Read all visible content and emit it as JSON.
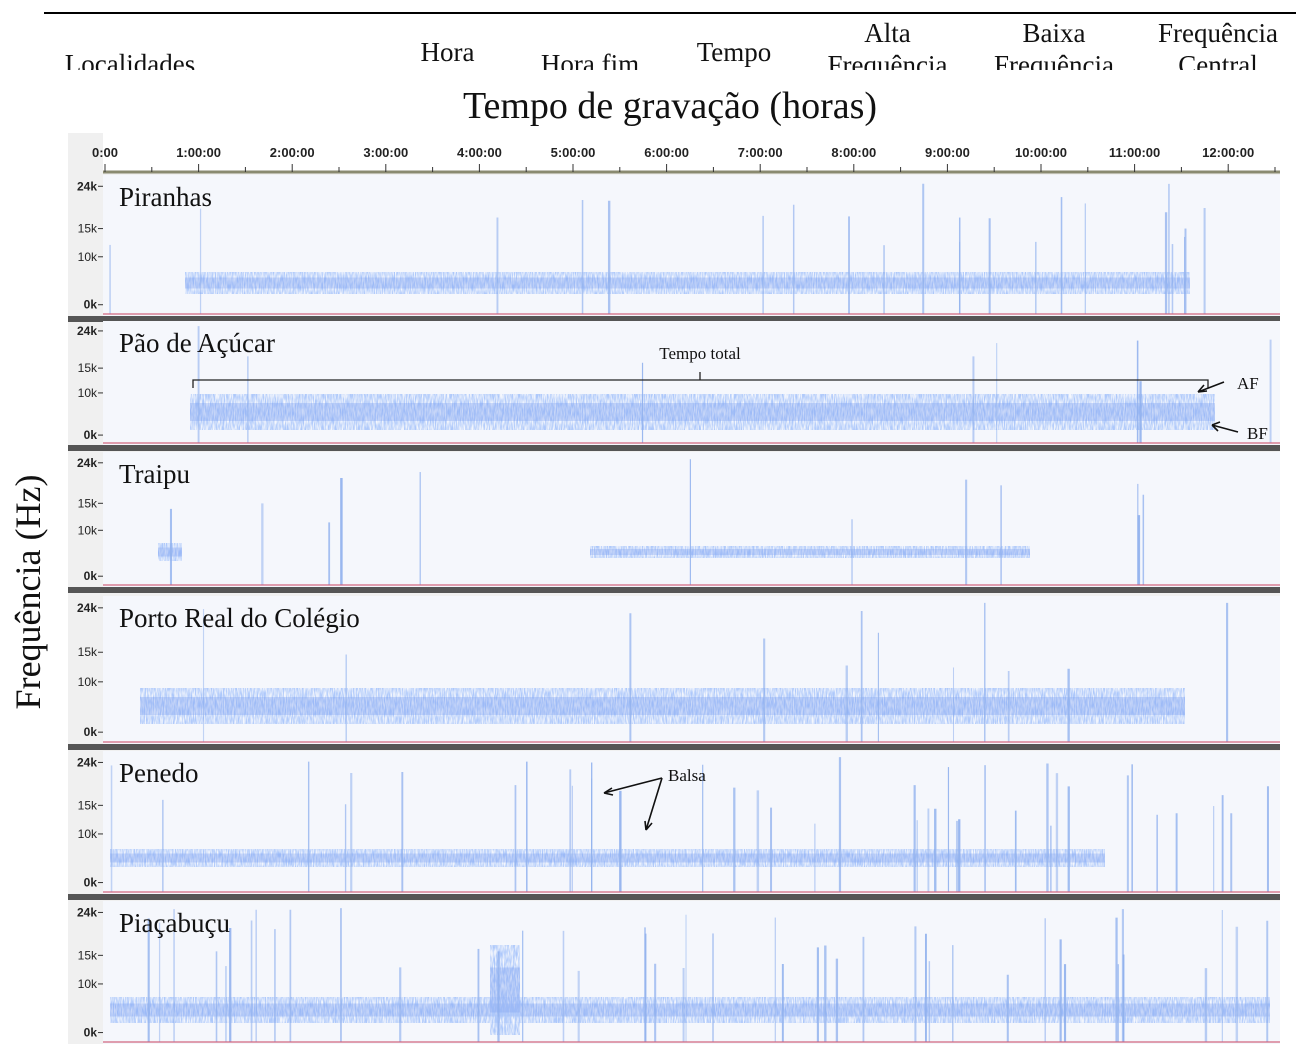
{
  "header": {
    "columns": [
      "Localidades",
      "Hora",
      "Hora fim",
      "Tempo",
      "Alta Frequência",
      "Baixa Frequência",
      "Frequência Central"
    ]
  },
  "figure": {
    "title": "Tempo de gravação (horas)",
    "y_label": "Frequência (Hz)",
    "time_ticks": [
      "0:00",
      "1:00:00",
      "2:00:00",
      "3:00:00",
      "4:00:00",
      "5:00:00",
      "6:00:00",
      "7:00:00",
      "8:00:00",
      "9:00:00",
      "10:00:00",
      "11:00:00",
      "12:00:00"
    ],
    "frequency_ticks": [
      "24k",
      "15k",
      "10k",
      "0k"
    ],
    "panels": [
      {
        "label": "Piranhas"
      },
      {
        "label": "Pão de Açúcar"
      },
      {
        "label": "Traipu"
      },
      {
        "label": "Porto Real do Colégio"
      },
      {
        "label": "Penedo"
      },
      {
        "label": "Piaçabuçu"
      }
    ],
    "annotations": {
      "total_time": "Tempo total",
      "high_frequency": "AF",
      "low_frequency": "BF",
      "ferry": "Balsa"
    }
  }
}
